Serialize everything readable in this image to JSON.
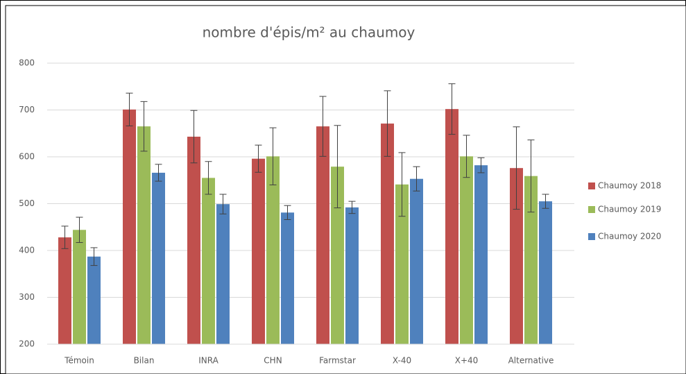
{
  "chart_data": {
    "type": "bar",
    "title": "nombre d'épis/m² au chaumoy",
    "categories": [
      "Témoin",
      "Bilan",
      "INRA",
      "CHN",
      "Farmstar",
      "X-40",
      "X+40",
      "Alternative"
    ],
    "series": [
      {
        "name": "Chaumoy 2018",
        "color": "#c0504d",
        "values": [
          428,
          701,
          643,
          596,
          665,
          671,
          702,
          576
        ],
        "errors": [
          24,
          35,
          56,
          29,
          64,
          70,
          54,
          88
        ]
      },
      {
        "name": "Chaumoy 2019",
        "color": "#9bbb59",
        "values": [
          444,
          665,
          555,
          601,
          579,
          541,
          601,
          559
        ],
        "errors": [
          27,
          53,
          35,
          61,
          88,
          68,
          45,
          77
        ]
      },
      {
        "name": "Chaumoy 2020",
        "color": "#4f81bd",
        "values": [
          387,
          566,
          499,
          481,
          492,
          553,
          582,
          505
        ],
        "errors": [
          19,
          18,
          21,
          15,
          13,
          26,
          16,
          15
        ]
      }
    ],
    "ylim": [
      200,
      800
    ],
    "yticks": [
      200,
      300,
      400,
      500,
      600,
      700,
      800
    ],
    "grid": true,
    "legend": "right"
  }
}
